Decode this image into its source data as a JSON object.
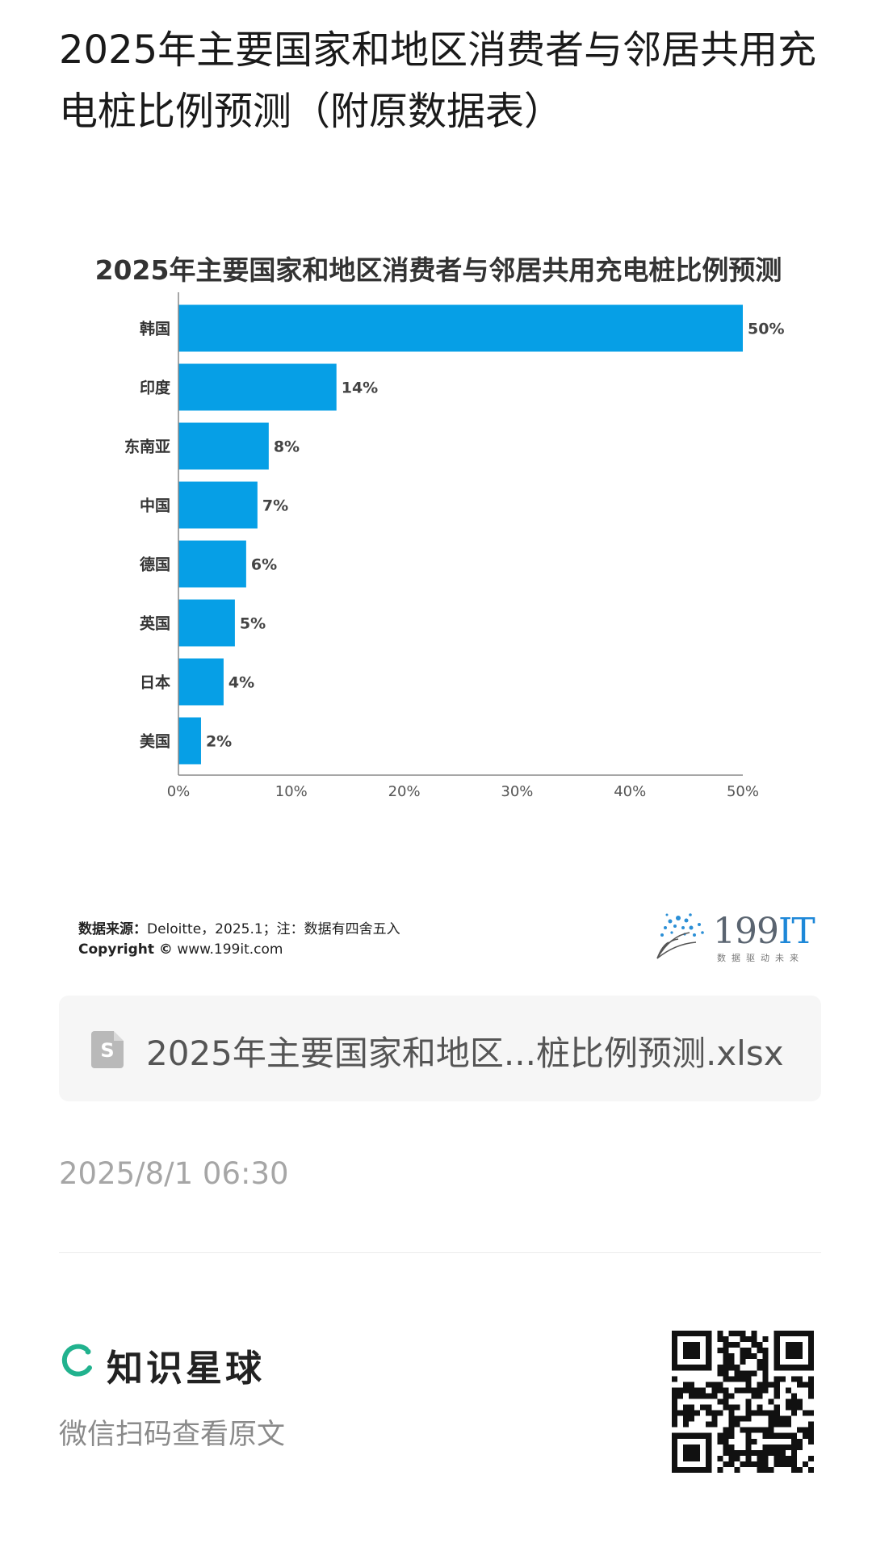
{
  "post": {
    "title": "2025年主要国家和地区消费者与邻居共用充电桩比例预测（附原数据表）",
    "timestamp": "2025/8/1 06:30"
  },
  "chart_data": {
    "type": "bar",
    "orientation": "horizontal",
    "title": "2025年主要国家和地区消费者与邻居共用充电桩比例预测",
    "categories": [
      "韩国",
      "印度",
      "东南亚",
      "中国",
      "德国",
      "英国",
      "日本",
      "美国"
    ],
    "values": [
      50,
      14,
      8,
      7,
      6,
      5,
      4,
      2
    ],
    "value_labels": [
      "50%",
      "14%",
      "8%",
      "7%",
      "6%",
      "5%",
      "4%",
      "2%"
    ],
    "xlim": [
      0,
      50
    ],
    "xticks": [
      "0%",
      "10%",
      "20%",
      "30%",
      "40%",
      "50%"
    ],
    "xlabel": "",
    "ylabel": "",
    "bar_color": "#069fe6",
    "grid": false
  },
  "chart_footer": {
    "source_label": "数据来源：",
    "source_text": "Deloitte，2025.1；注：数据有四舍五入",
    "copyright_label": "Copyright ©",
    "copyright_text": "www.199it.com",
    "brand_main": "199",
    "brand_it": "IT",
    "brand_sub": "数据驱动未来"
  },
  "attachment": {
    "icon": "spreadsheet-file-icon",
    "icon_letter": "S",
    "file_name": "2025年主要国家和地区...桩比例预测.xlsx"
  },
  "footer": {
    "brand_name": "知识星球",
    "scan_text": "微信扫码查看原文",
    "brand_color": "#21b28e"
  }
}
